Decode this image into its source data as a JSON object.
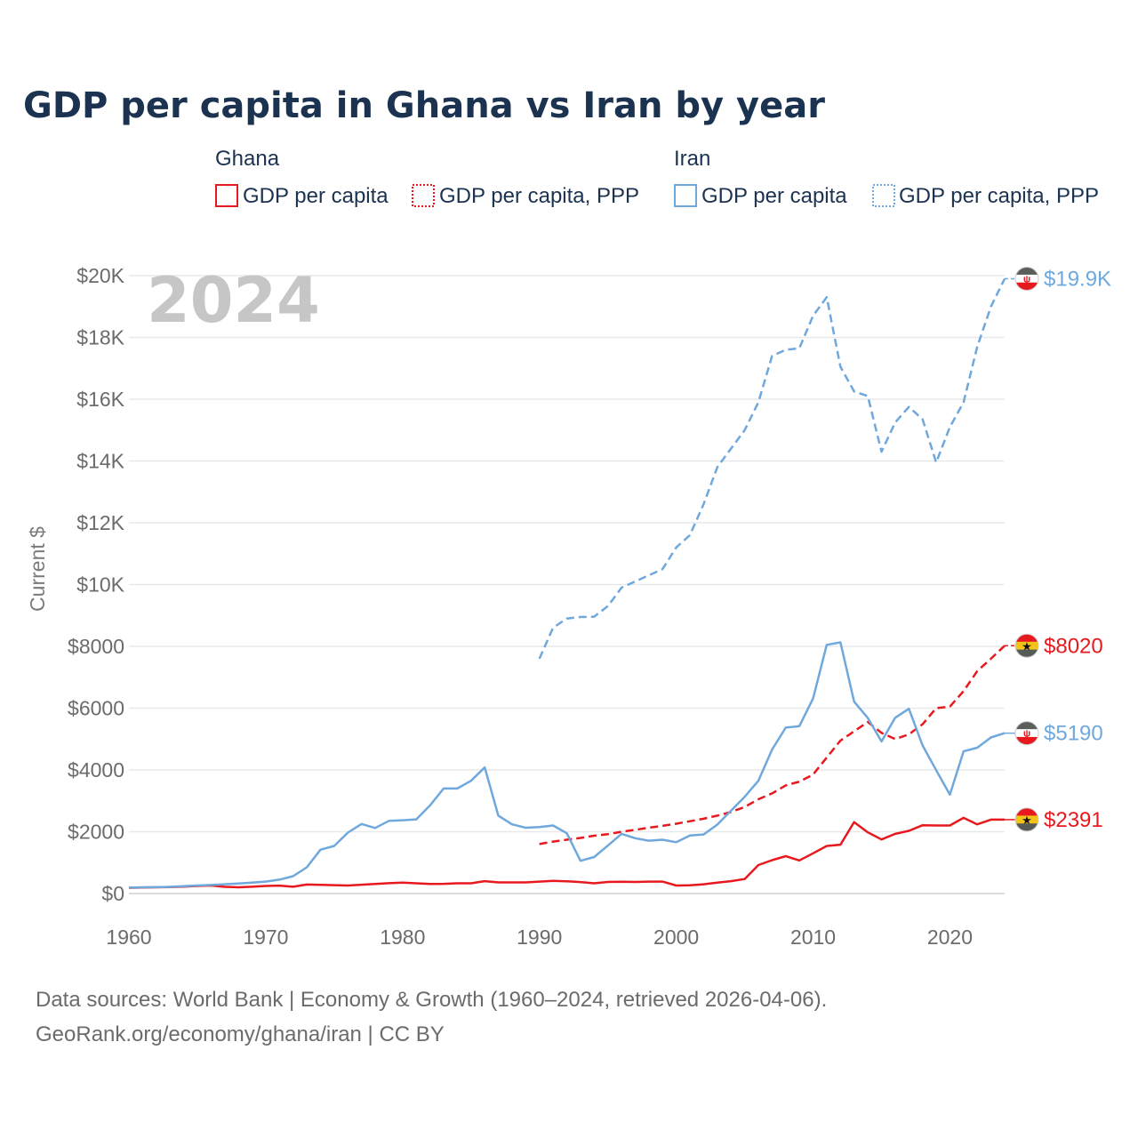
{
  "chart_data": {
    "type": "line",
    "title": "GDP per capita in Ghana vs Iran by year",
    "ylabel": "Current $",
    "xlabel": "",
    "xlim": [
      1960,
      2024
    ],
    "ylim": [
      0,
      20000
    ],
    "x_ticks": [
      1960,
      1970,
      1980,
      1990,
      2000,
      2010,
      2020
    ],
    "y_ticks": [
      {
        "value": 0,
        "label": "$0"
      },
      {
        "value": 2000,
        "label": "$2000"
      },
      {
        "value": 4000,
        "label": "$4000"
      },
      {
        "value": 6000,
        "label": "$6000"
      },
      {
        "value": 8000,
        "label": "$8000"
      },
      {
        "value": 10000,
        "label": "$10K"
      },
      {
        "value": 12000,
        "label": "$12K"
      },
      {
        "value": 14000,
        "label": "$14K"
      },
      {
        "value": 16000,
        "label": "$16K"
      },
      {
        "value": 18000,
        "label": "$18K"
      },
      {
        "value": 20000,
        "label": "$20K"
      }
    ],
    "grid": true,
    "year_watermark": "2024",
    "legend": [
      {
        "group": "Ghana",
        "entries": [
          "GDP per capita",
          "GDP per capita, PPP"
        ]
      },
      {
        "group": "Iran",
        "entries": [
          "GDP per capita",
          "GDP per capita, PPP"
        ]
      }
    ],
    "series": [
      {
        "name": "Ghana GDP per capita",
        "color": "#e8191e",
        "dash": "solid",
        "end_label": "$2391",
        "x": [
          1960,
          1961,
          1962,
          1963,
          1964,
          1965,
          1966,
          1967,
          1968,
          1969,
          1970,
          1971,
          1972,
          1973,
          1974,
          1975,
          1976,
          1977,
          1978,
          1979,
          1980,
          1981,
          1982,
          1983,
          1984,
          1985,
          1986,
          1987,
          1988,
          1989,
          1990,
          1991,
          1992,
          1993,
          1994,
          1995,
          1996,
          1997,
          1998,
          1999,
          2000,
          2001,
          2002,
          2003,
          2004,
          2005,
          2006,
          2007,
          2008,
          2009,
          2010,
          2011,
          2012,
          2013,
          2014,
          2015,
          2016,
          2017,
          2018,
          2019,
          2020,
          2021,
          2022,
          2023,
          2024
        ],
        "values": [
          183,
          192,
          200,
          210,
          225,
          245,
          260,
          215,
          200,
          220,
          245,
          255,
          220,
          290,
          280,
          270,
          260,
          285,
          310,
          335,
          350,
          330,
          310,
          315,
          330,
          330,
          400,
          360,
          360,
          360,
          385,
          410,
          395,
          370,
          330,
          375,
          380,
          375,
          385,
          385,
          260,
          265,
          300,
          350,
          400,
          470,
          920,
          1080,
          1210,
          1070,
          1300,
          1540,
          1580,
          2310,
          1980,
          1750,
          1930,
          2030,
          2210,
          2200,
          2200,
          2450,
          2240,
          2390,
          2391
        ]
      },
      {
        "name": "Ghana GDP per capita, PPP",
        "color": "#e8191e",
        "dash": "dashed",
        "end_label": "$8020",
        "x": [
          1990,
          1991,
          1992,
          1993,
          1994,
          1995,
          1996,
          1997,
          1998,
          1999,
          2000,
          2001,
          2002,
          2003,
          2004,
          2005,
          2006,
          2007,
          2008,
          2009,
          2010,
          2011,
          2012,
          2013,
          2014,
          2015,
          2016,
          2017,
          2018,
          2019,
          2020,
          2021,
          2022,
          2023,
          2024
        ],
        "values": [
          1600,
          1680,
          1740,
          1800,
          1870,
          1920,
          2000,
          2060,
          2130,
          2190,
          2260,
          2340,
          2420,
          2520,
          2640,
          2800,
          3050,
          3240,
          3500,
          3620,
          3850,
          4400,
          4950,
          5250,
          5550,
          5200,
          5000,
          5150,
          5480,
          6000,
          6050,
          6550,
          7200,
          7600,
          8020
        ]
      },
      {
        "name": "Iran GDP per capita",
        "color": "#6fa8dc",
        "dash": "solid",
        "end_label": "$5190",
        "x": [
          1960,
          1961,
          1962,
          1963,
          1964,
          1965,
          1966,
          1967,
          1968,
          1969,
          1970,
          1971,
          1972,
          1973,
          1974,
          1975,
          1976,
          1977,
          1978,
          1979,
          1980,
          1981,
          1982,
          1983,
          1984,
          1985,
          1986,
          1987,
          1988,
          1989,
          1990,
          1991,
          1992,
          1993,
          1994,
          1995,
          1996,
          1997,
          1998,
          1999,
          2000,
          2001,
          2002,
          2003,
          2004,
          2005,
          2006,
          2007,
          2008,
          2009,
          2010,
          2011,
          2012,
          2013,
          2014,
          2015,
          2016,
          2017,
          2018,
          2019,
          2020,
          2021,
          2022,
          2023,
          2024
        ],
        "values": [
          190,
          200,
          205,
          215,
          235,
          260,
          275,
          300,
          325,
          355,
          385,
          450,
          560,
          850,
          1420,
          1540,
          1970,
          2250,
          2120,
          2350,
          2370,
          2400,
          2850,
          3400,
          3400,
          3650,
          4080,
          2520,
          2240,
          2130,
          2150,
          2200,
          1950,
          1060,
          1180,
          1550,
          1930,
          1790,
          1710,
          1740,
          1660,
          1880,
          1910,
          2230,
          2680,
          3130,
          3650,
          4660,
          5370,
          5420,
          6310,
          8050,
          8130,
          6210,
          5680,
          4920,
          5690,
          5980,
          4790,
          3990,
          3200,
          4600,
          4720,
          5050,
          5190
        ]
      },
      {
        "name": "Iran GDP per capita, PPP",
        "color": "#6fa8dc",
        "dash": "dashed",
        "end_label": "$19.9K",
        "x": [
          1990,
          1991,
          1992,
          1993,
          1994,
          1995,
          1996,
          1997,
          1998,
          1999,
          2000,
          2001,
          2002,
          2003,
          2004,
          2005,
          2006,
          2007,
          2008,
          2009,
          2010,
          2011,
          2012,
          2013,
          2014,
          2015,
          2016,
          2017,
          2018,
          2019,
          2020,
          2021,
          2022,
          2023,
          2024
        ],
        "values": [
          7600,
          8600,
          8900,
          8950,
          8960,
          9300,
          9900,
          10100,
          10300,
          10500,
          11200,
          11600,
          12600,
          13800,
          14400,
          15000,
          15900,
          17400,
          17600,
          17650,
          18700,
          19300,
          17050,
          16250,
          16100,
          14300,
          15250,
          15750,
          15350,
          13950,
          15100,
          15900,
          17700,
          19000,
          19900
        ]
      }
    ]
  },
  "footer": {
    "source_line": "Data sources: World Bank | Economy & Growth (1960–2024, retrieved 2026-04-06).",
    "credit_line": "GeoRank.org/economy/ghana/iran | CC BY"
  }
}
